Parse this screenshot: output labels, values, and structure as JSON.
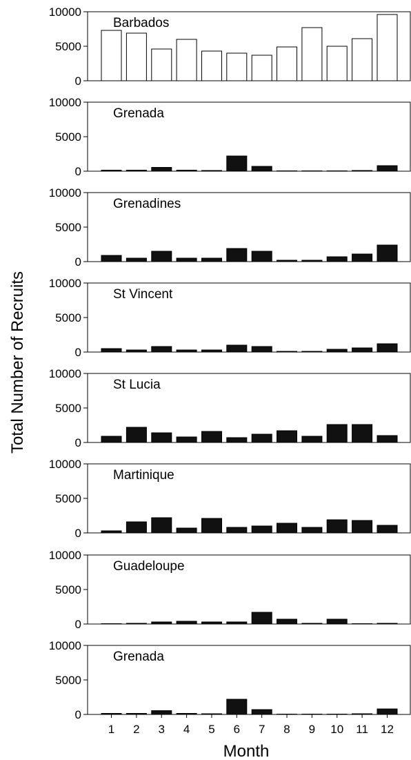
{
  "chart_data": {
    "type": "bar",
    "ylabel": "Total Number of Recruits",
    "xlabel": "Month",
    "categories": [
      "1",
      "2",
      "3",
      "4",
      "5",
      "6",
      "7",
      "8",
      "9",
      "10",
      "11",
      "12"
    ],
    "ylim": [
      0,
      10000
    ],
    "yticks": [
      0,
      5000,
      10000
    ],
    "grid": false,
    "panels": [
      {
        "title": "Barbados",
        "bar_color": "#ffffff",
        "values": [
          7300,
          6900,
          4600,
          6000,
          4300,
          4000,
          3700,
          4900,
          7700,
          5000,
          6100,
          9600
        ]
      },
      {
        "title": "Grenada",
        "bar_color": "#111111",
        "values": [
          150,
          150,
          550,
          150,
          100,
          2200,
          700,
          50,
          50,
          50,
          100,
          800
        ]
      },
      {
        "title": "Grenadines",
        "bar_color": "#111111",
        "values": [
          900,
          500,
          1500,
          500,
          500,
          1900,
          1500,
          200,
          200,
          700,
          1100,
          2400
        ]
      },
      {
        "title": "St Vincent",
        "bar_color": "#111111",
        "values": [
          500,
          300,
          800,
          300,
          300,
          1000,
          800,
          100,
          100,
          400,
          600,
          1200
        ]
      },
      {
        "title": "St Lucia",
        "bar_color": "#111111",
        "values": [
          900,
          2200,
          1400,
          800,
          1600,
          700,
          1200,
          1700,
          900,
          2600,
          2600,
          1000
        ]
      },
      {
        "title": "Martinique",
        "bar_color": "#111111",
        "values": [
          300,
          1600,
          2200,
          700,
          2100,
          800,
          1000,
          1400,
          800,
          1900,
          1800,
          1100
        ]
      },
      {
        "title": "Guadeloupe",
        "bar_color": "#111111",
        "values": [
          50,
          100,
          300,
          400,
          300,
          300,
          1700,
          700,
          100,
          700,
          50,
          100
        ]
      },
      {
        "title": "Grenada",
        "bar_color": "#111111",
        "values": [
          150,
          150,
          550,
          150,
          100,
          2200,
          700,
          50,
          50,
          50,
          100,
          800
        ]
      }
    ]
  }
}
